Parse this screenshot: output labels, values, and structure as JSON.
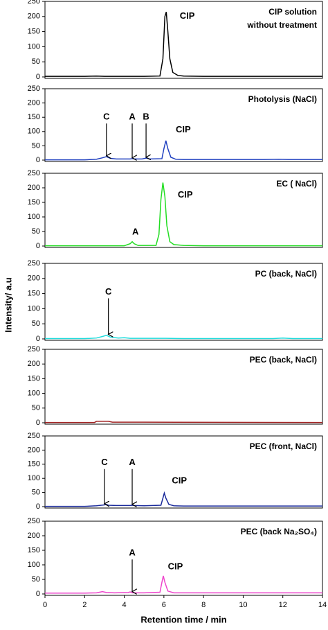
{
  "y_label": "Intensity/ a.u",
  "chart_data": [
    {
      "type": "line",
      "title": [
        "CIP solution",
        "without treatment"
      ],
      "color": "#000000",
      "x": [
        0,
        2,
        2.6,
        3,
        4,
        5,
        5.8,
        5.95,
        6.05,
        6.12,
        6.2,
        6.3,
        6.45,
        6.7,
        7,
        8,
        10,
        12,
        14
      ],
      "values": [
        2,
        2,
        3,
        2,
        2,
        2,
        3,
        60,
        200,
        215,
        150,
        60,
        15,
        5,
        3,
        2,
        2,
        2,
        2
      ],
      "xlim": [
        0,
        14
      ],
      "ylim": [
        0,
        250
      ],
      "yticks": [
        0,
        50,
        100,
        150,
        200,
        250
      ],
      "annotations": [
        {
          "text": "CIP",
          "x": 6.8,
          "y": 200
        }
      ]
    },
    {
      "type": "line",
      "title": [
        "Photolysis (NaCl)"
      ],
      "color": "#2040c0",
      "x": [
        0,
        2,
        2.6,
        2.9,
        3.1,
        3.3,
        3.6,
        4.3,
        4.4,
        4.5,
        4.9,
        5.1,
        5.3,
        5.9,
        6.0,
        6.1,
        6.2,
        6.35,
        6.6,
        7,
        8,
        11,
        11.8,
        12.3,
        14
      ],
      "values": [
        1,
        1,
        3,
        8,
        12,
        6,
        4,
        4,
        5,
        4,
        4,
        7,
        4,
        5,
        40,
        68,
        40,
        10,
        3,
        2,
        2,
        2,
        3,
        2,
        2
      ],
      "xlim": [
        0,
        14
      ],
      "ylim": [
        0,
        250
      ],
      "yticks": [
        0,
        50,
        100,
        150,
        200,
        250
      ],
      "annotations": [
        {
          "text": "C",
          "x": 3.1,
          "y": 150,
          "arrow_to": 15
        },
        {
          "text": "A",
          "x": 4.4,
          "y": 150,
          "arrow_to": 8
        },
        {
          "text": "B",
          "x": 5.1,
          "y": 150,
          "arrow_to": 10
        },
        {
          "text": "CIP",
          "x": 6.6,
          "y": 105
        }
      ]
    },
    {
      "type": "line",
      "title": [
        "EC ( NaCl)"
      ],
      "color": "#22dd22",
      "x": [
        0,
        2,
        4,
        4.3,
        4.4,
        4.5,
        4.7,
        5.6,
        5.75,
        5.85,
        5.95,
        6.05,
        6.15,
        6.3,
        6.5,
        7,
        8,
        14
      ],
      "values": [
        1,
        1,
        1,
        8,
        15,
        8,
        2,
        2,
        40,
        160,
        218,
        170,
        70,
        15,
        5,
        2,
        1,
        1
      ],
      "xlim": [
        0,
        14
      ],
      "ylim": [
        0,
        250
      ],
      "yticks": [
        0,
        50,
        100,
        150,
        200,
        250
      ],
      "annotations": [
        {
          "text": "A",
          "x": 4.4,
          "y": 48
        },
        {
          "text": "CIP",
          "x": 6.7,
          "y": 175
        }
      ]
    },
    {
      "type": "line",
      "title": [
        "PC (back, NaCl)"
      ],
      "color": "#22dddd",
      "x": [
        0,
        2,
        2.6,
        2.9,
        3.1,
        3.3,
        3.7,
        4.0,
        4.3,
        5,
        6.1,
        7,
        11.5,
        12,
        12.5,
        14
      ],
      "values": [
        1,
        1,
        3,
        8,
        12,
        6,
        3,
        4,
        2,
        2,
        2,
        1,
        1,
        3,
        1,
        1
      ],
      "xlim": [
        0,
        14
      ],
      "ylim": [
        0,
        250
      ],
      "yticks": [
        0,
        50,
        100,
        150,
        200,
        250
      ],
      "annotations": [
        {
          "text": "C",
          "x": 3.2,
          "y": 155,
          "arrow_to": 15
        }
      ]
    },
    {
      "type": "line",
      "title": [
        "PEC (back, NaCl)"
      ],
      "color": "#a02020",
      "x": [
        0,
        2.5,
        2.6,
        3.2,
        3.4,
        5,
        14
      ],
      "values": [
        1,
        1,
        5,
        5,
        2,
        2,
        1
      ],
      "xlim": [
        0,
        14
      ],
      "ylim": [
        0,
        250
      ],
      "yticks": [
        0,
        50,
        100,
        150,
        200,
        250
      ],
      "annotations": []
    },
    {
      "type": "line",
      "title": [
        "PEC (front, NaCl)"
      ],
      "color": "#1a2a9a",
      "x": [
        0,
        2,
        2.6,
        3.0,
        3.1,
        3.2,
        3.6,
        4.3,
        4.4,
        4.5,
        5,
        5.85,
        5.95,
        6.02,
        6.1,
        6.25,
        6.5,
        7,
        14
      ],
      "values": [
        1,
        1,
        3,
        6,
        8,
        5,
        4,
        4,
        5,
        4,
        3,
        5,
        30,
        48,
        30,
        8,
        3,
        2,
        2
      ],
      "xlim": [
        0,
        14
      ],
      "ylim": [
        0,
        250
      ],
      "yticks": [
        0,
        50,
        100,
        150,
        200,
        250
      ],
      "annotations": [
        {
          "text": "C",
          "x": 3.0,
          "y": 155,
          "arrow_to": 10
        },
        {
          "text": "A",
          "x": 4.4,
          "y": 155,
          "arrow_to": 8
        },
        {
          "text": "CIP",
          "x": 6.4,
          "y": 90
        }
      ]
    },
    {
      "type": "line",
      "title": [
        "PEC (back Na₂SO₄)"
      ],
      "color": "#ee44cc",
      "x": [
        0,
        2,
        2.6,
        2.9,
        3.1,
        3.5,
        4.2,
        4.3,
        4.4,
        5,
        5.8,
        5.9,
        5.97,
        6.05,
        6.2,
        6.5,
        7,
        14
      ],
      "values": [
        3,
        3,
        4,
        8,
        5,
        4,
        5,
        7,
        4,
        4,
        6,
        40,
        62,
        40,
        10,
        4,
        4,
        4
      ],
      "xlim": [
        0,
        14
      ],
      "ylim": [
        0,
        250
      ],
      "yticks": [
        0,
        50,
        100,
        150,
        200,
        250
      ],
      "annotations": [
        {
          "text": "A",
          "x": 4.4,
          "y": 140,
          "arrow_to": 8
        },
        {
          "text": "CIP",
          "x": 6.2,
          "y": 93
        }
      ],
      "x_label": "Retention time / min",
      "xticks": [
        0,
        2,
        4,
        6,
        8,
        10,
        12,
        14
      ]
    }
  ]
}
